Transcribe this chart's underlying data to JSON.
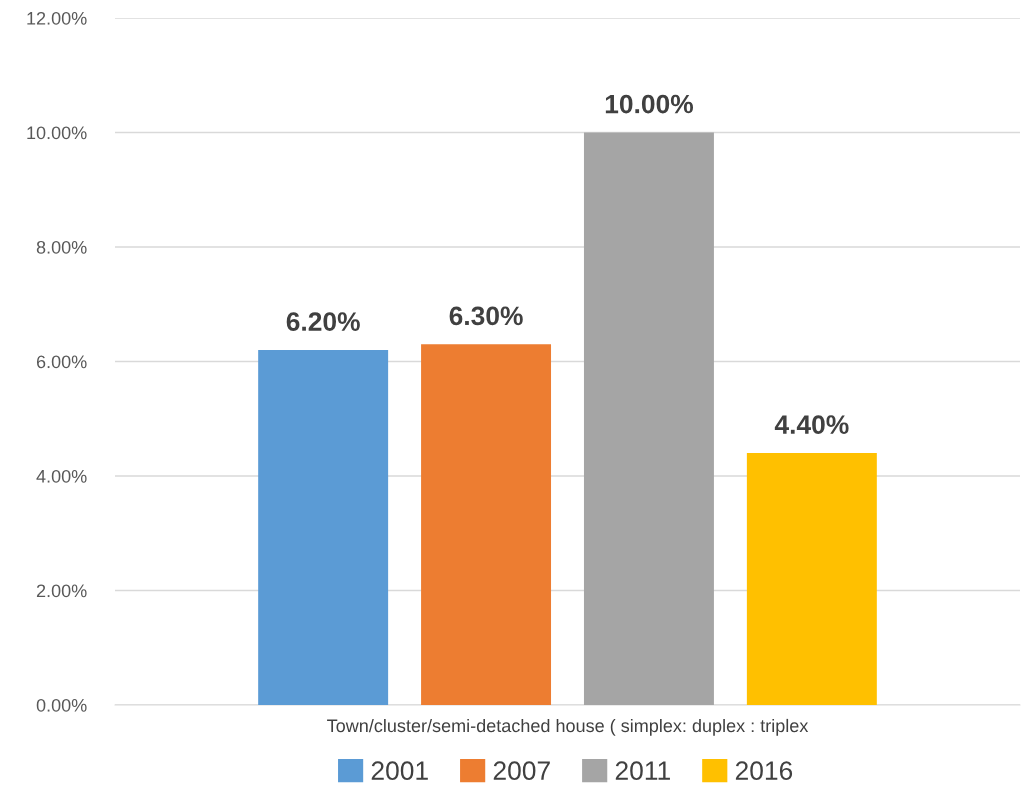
{
  "chart_data": {
    "type": "bar",
    "categories": [
      "Town/cluster/semi-detached house ( simplex: duplex : triplex"
    ],
    "series": [
      {
        "name": "2001",
        "color": "#5b9bd5",
        "values": [
          6.2
        ],
        "value_labels": [
          "6.20%"
        ]
      },
      {
        "name": "2007",
        "color": "#ed7d31",
        "values": [
          6.3
        ],
        "value_labels": [
          "6.30%"
        ]
      },
      {
        "name": "2011",
        "color": "#a5a5a5",
        "values": [
          10.0
        ],
        "value_labels": [
          "10.00%"
        ]
      },
      {
        "name": "2016",
        "color": "#ffc000",
        "values": [
          4.4
        ],
        "value_labels": [
          "4.40%"
        ]
      }
    ],
    "ylim": [
      0,
      12
    ],
    "yticks": [
      {
        "value": 0,
        "label": "0.00%"
      },
      {
        "value": 2,
        "label": "2.00%"
      },
      {
        "value": 4,
        "label": "4.00%"
      },
      {
        "value": 6,
        "label": "6.00%"
      },
      {
        "value": 8,
        "label": "8.00%"
      },
      {
        "value": 10,
        "label": "10.00%"
      },
      {
        "value": 12,
        "label": "12.00%"
      }
    ],
    "grid": "y",
    "legend": "bottom"
  }
}
